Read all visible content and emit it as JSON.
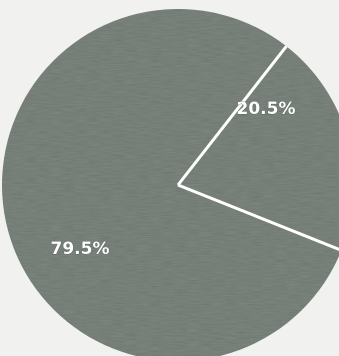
{
  "chart_data": {
    "type": "pie",
    "slices": [
      {
        "label": "20.5%",
        "value": 20.5
      },
      {
        "label": "79.5%",
        "value": 79.5
      }
    ],
    "colors": {
      "fill": "#7f8881",
      "separator": "#ffffff",
      "text": "#ffffff",
      "background": "#f1f1ef"
    }
  }
}
